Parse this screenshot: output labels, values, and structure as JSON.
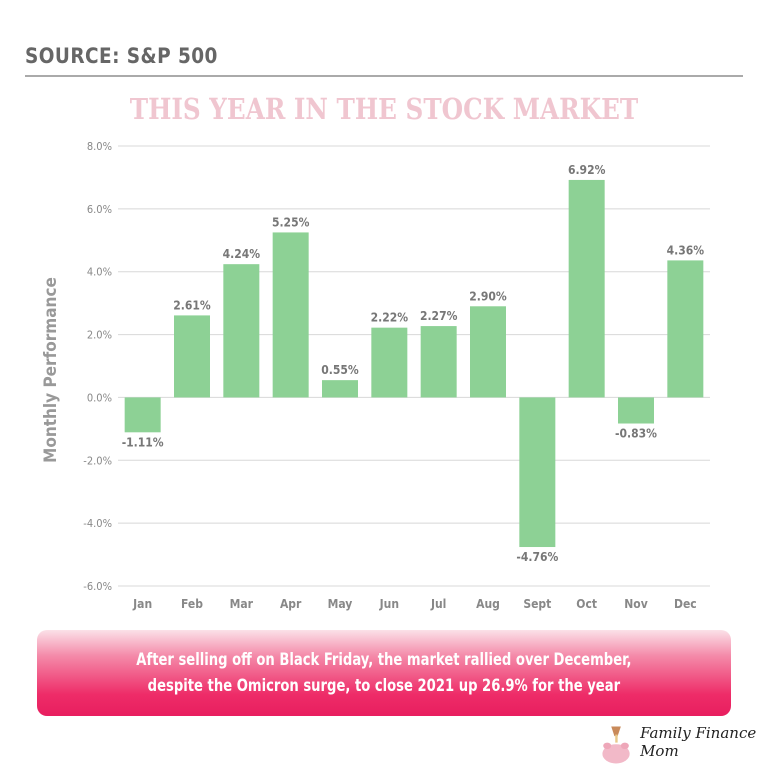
{
  "header": {
    "source": "SOURCE: S&P 500"
  },
  "chart_data": {
    "type": "bar",
    "title": "THIS YEAR IN THE STOCK MARKET",
    "ylabel": "Monthly Performance",
    "xlabel": "",
    "categories": [
      "Jan",
      "Feb",
      "Mar",
      "Apr",
      "May",
      "Jun",
      "Jul",
      "Aug",
      "Sept",
      "Oct",
      "Nov",
      "Dec"
    ],
    "values": [
      -1.11,
      2.61,
      4.24,
      5.25,
      0.55,
      2.22,
      2.27,
      2.9,
      -4.76,
      6.92,
      -0.83,
      4.36
    ],
    "data_labels": [
      "-1.11%",
      "2.61%",
      "4.24%",
      "5.25%",
      "0.55%",
      "2.22%",
      "2.27%",
      "2.90%",
      "-4.76%",
      "6.92%",
      "-0.83%",
      "4.36%"
    ],
    "yticks": [
      8,
      6,
      4,
      2,
      0,
      -2,
      -4,
      -6
    ],
    "ytick_labels": [
      "8.0%",
      "6.0%",
      "4.0%",
      "2.0%",
      "0.0%",
      "-2.0%",
      "-4.0%",
      "-6.0%"
    ],
    "ylim": [
      -6,
      8
    ],
    "grid": true,
    "bar_color": "#8dd195"
  },
  "banner": {
    "text": "After selling off on Black Friday, the market rallied over December,\ndespite the Omicron surge, to close 2021 up 26.9% for the year"
  },
  "logo": {
    "text": "Family Finance Mom"
  }
}
